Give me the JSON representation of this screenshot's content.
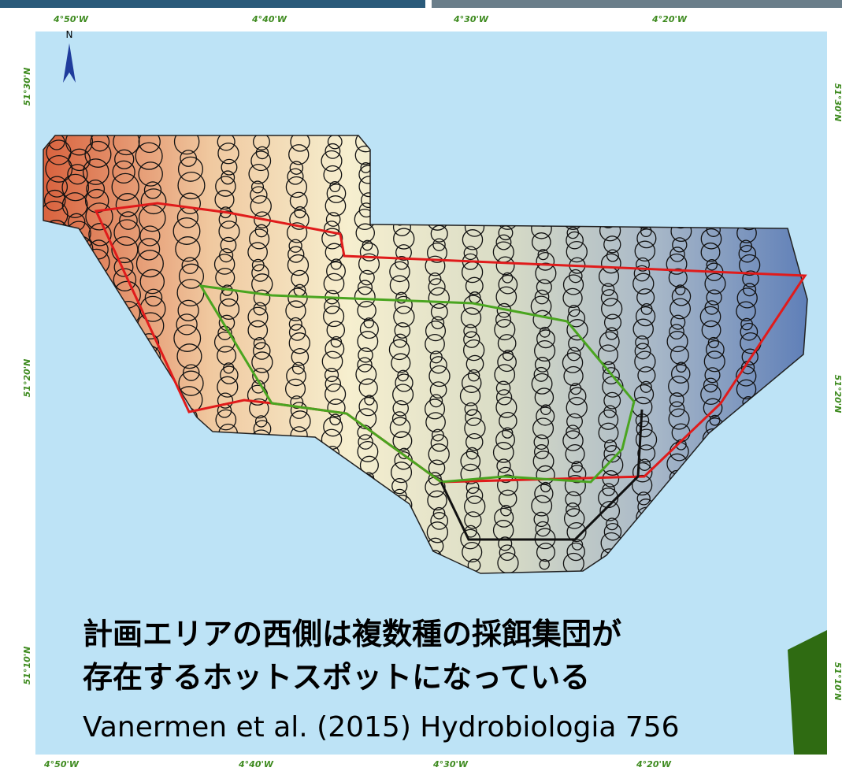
{
  "map": {
    "north_label": "N",
    "top_axis": [
      "4°50'W",
      "4°40'W",
      "4°30'W",
      "4°20'W"
    ],
    "bottom_axis": [
      "4°50'W",
      "4°40'W",
      "4°30'W",
      "4°20'W"
    ],
    "left_axis": [
      "51°30'N",
      "51°20'N",
      "51°10'N"
    ],
    "right_axis": [
      "51°30'N",
      "51°20'N",
      "51°10'N"
    ],
    "caption": {
      "lines": [
        "計画エリアの西側は複数種の採餌集団が",
        "存在するホットスポットになっている"
      ],
      "citation": "Vanermen et al. (2015) Hydrobiologia 756"
    }
  }
}
